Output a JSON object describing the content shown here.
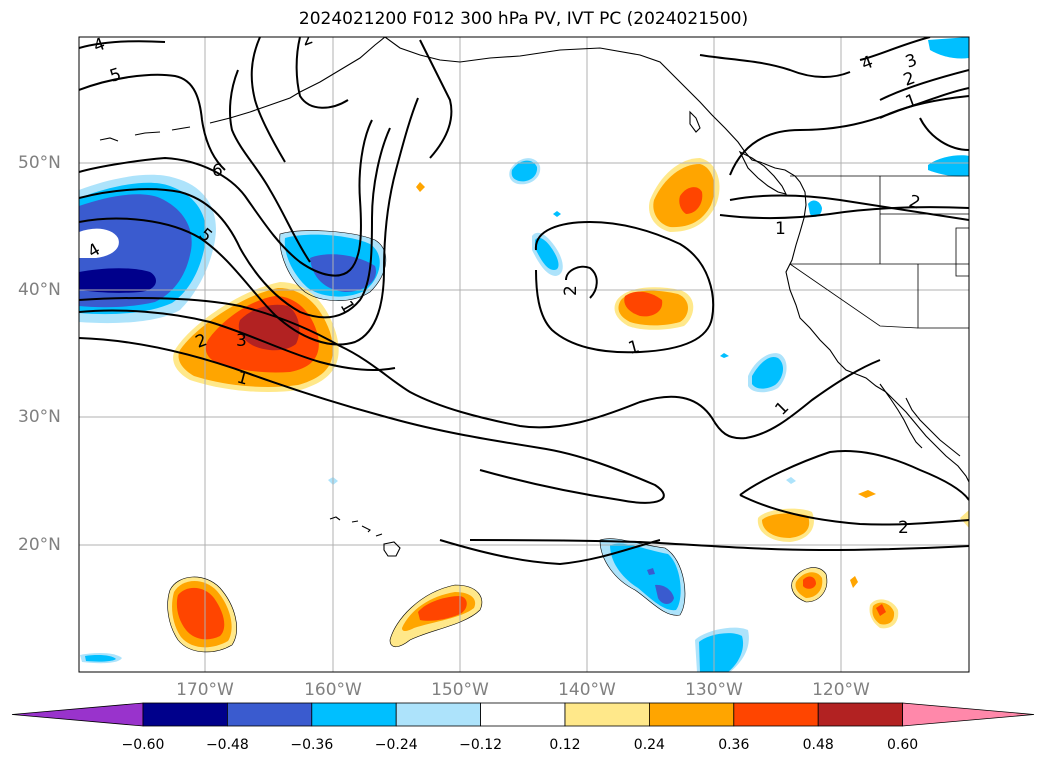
{
  "title": "2024021200 F012 300 hPa PV, IVT PC (2024021500)",
  "lat_labels": [
    "50°N",
    "40°N",
    "30°N",
    "20°N"
  ],
  "lon_labels": [
    "170°W",
    "160°W",
    "150°W",
    "140°W",
    "130°W",
    "120°W"
  ],
  "colorbar": {
    "ticks": [
      "−0.60",
      "−0.48",
      "−0.36",
      "−0.24",
      "−0.12",
      "0.12",
      "0.24",
      "0.36",
      "0.48",
      "0.60"
    ],
    "colors": [
      "#9933cc",
      "#00008b",
      "#3a5bcf",
      "#00bfff",
      "#ade3fb",
      "#ffffff",
      "#ffe88a",
      "#ffa500",
      "#ff4500",
      "#b22222",
      "#ff88aa"
    ]
  },
  "contour_labels": [
    "4",
    "5",
    "6",
    "5",
    "4",
    "2",
    "3",
    "1",
    "2",
    "1",
    "1",
    "1",
    "2",
    "3",
    "4",
    "2",
    "1",
    "2",
    "1",
    "2"
  ],
  "colors": {
    "grid": "#b0b0b0",
    "axis_label": "#808080",
    "coast": "#000000"
  }
}
